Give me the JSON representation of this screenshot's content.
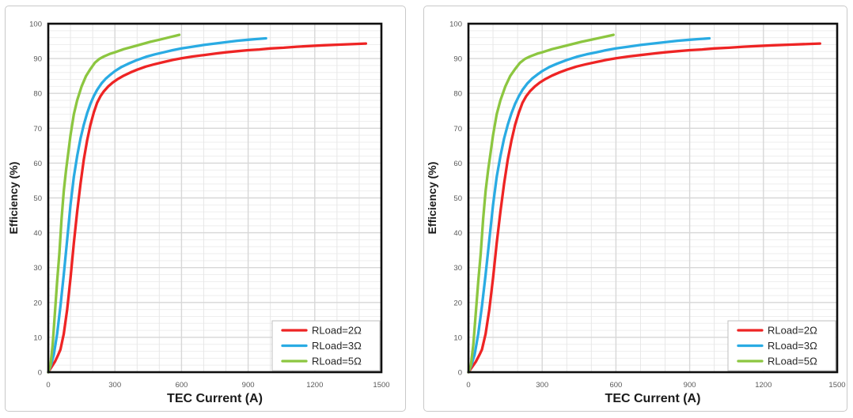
{
  "colors": {
    "rload2": "#ee2424",
    "rload3": "#2aabe3",
    "rload5": "#8cc640",
    "grid_minor_h": "#eeeeee",
    "grid_minor_v": "#e7e7e7",
    "grid_major": "#d7d7d7",
    "plot_border": "#0f0f0f",
    "tick_label": "#595959",
    "axis_title": "#1a1a1a",
    "legend_border": "#bfbfbf",
    "legend_text": "#262626",
    "panel_border": "#c9c9c9"
  },
  "chart_data": [
    {
      "type": "line",
      "title": "",
      "xlabel": "TEC Current (A)",
      "ylabel": "Efficiency (%)",
      "xlim": [
        0,
        1500
      ],
      "ylim": [
        0,
        100
      ],
      "xticks": [
        0,
        300,
        600,
        900,
        1200,
        1500
      ],
      "yticks": [
        0,
        10,
        20,
        30,
        40,
        50,
        60,
        70,
        80,
        90,
        100
      ],
      "x_minor_step": 100,
      "y_minor_step": 2,
      "grid": "on",
      "legend_position": "bottom-right",
      "series": [
        {
          "name": "RLoad=2Ω",
          "color": "#ee2424",
          "points": [
            [
              0,
              0
            ],
            [
              15,
              1.5
            ],
            [
              30,
              3
            ],
            [
              45,
              5
            ],
            [
              55,
              6.5
            ],
            [
              70,
              11
            ],
            [
              85,
              18
            ],
            [
              100,
              27
            ],
            [
              115,
              37
            ],
            [
              130,
              46
            ],
            [
              145,
              54
            ],
            [
              160,
              61
            ],
            [
              175,
              66.5
            ],
            [
              190,
              71
            ],
            [
              205,
              74.5
            ],
            [
              220,
              77.3
            ],
            [
              235,
              79.2
            ],
            [
              250,
              80.6
            ],
            [
              270,
              82
            ],
            [
              290,
              83.1
            ],
            [
              310,
              84
            ],
            [
              340,
              85.1
            ],
            [
              370,
              86
            ],
            [
              400,
              86.8
            ],
            [
              440,
              87.7
            ],
            [
              480,
              88.4
            ],
            [
              520,
              89
            ],
            [
              560,
              89.6
            ],
            [
              600,
              90.1
            ],
            [
              650,
              90.6
            ],
            [
              700,
              91
            ],
            [
              750,
              91.4
            ],
            [
              800,
              91.8
            ],
            [
              850,
              92.1
            ],
            [
              900,
              92.4
            ],
            [
              950,
              92.6
            ],
            [
              1000,
              92.9
            ],
            [
              1060,
              93.1
            ],
            [
              1120,
              93.4
            ],
            [
              1180,
              93.6
            ],
            [
              1240,
              93.8
            ],
            [
              1310,
              94
            ],
            [
              1430,
              94.3
            ]
          ]
        },
        {
          "name": "RLoad=3Ω",
          "color": "#2aabe3",
          "points": [
            [
              0,
              0
            ],
            [
              12,
              2
            ],
            [
              25,
              5
            ],
            [
              40,
              11
            ],
            [
              55,
              19
            ],
            [
              70,
              28
            ],
            [
              85,
              38
            ],
            [
              100,
              48
            ],
            [
              115,
              56
            ],
            [
              130,
              62
            ],
            [
              145,
              67
            ],
            [
              160,
              71
            ],
            [
              175,
              74.3
            ],
            [
              190,
              77
            ],
            [
              205,
              79.2
            ],
            [
              220,
              81
            ],
            [
              240,
              82.9
            ],
            [
              260,
              84.3
            ],
            [
              280,
              85.4
            ],
            [
              300,
              86.4
            ],
            [
              330,
              87.6
            ],
            [
              360,
              88.5
            ],
            [
              400,
              89.6
            ],
            [
              440,
              90.5
            ],
            [
              480,
              91.2
            ],
            [
              520,
              91.8
            ],
            [
              560,
              92.4
            ],
            [
              600,
              92.9
            ],
            [
              650,
              93.4
            ],
            [
              700,
              93.9
            ],
            [
              750,
              94.3
            ],
            [
              800,
              94.7
            ],
            [
              850,
              95.1
            ],
            [
              900,
              95.4
            ],
            [
              940,
              95.6
            ],
            [
              980,
              95.8
            ]
          ]
        },
        {
          "name": "RLoad=5Ω",
          "color": "#8cc640",
          "points": [
            [
              0,
              0
            ],
            [
              10,
              2
            ],
            [
              20,
              8
            ],
            [
              30,
              17
            ],
            [
              40,
              26
            ],
            [
              50,
              34
            ],
            [
              60,
              44
            ],
            [
              70,
              52
            ],
            [
              80,
              58
            ],
            [
              90,
              63
            ],
            [
              100,
              68
            ],
            [
              115,
              74
            ],
            [
              130,
              78
            ],
            [
              150,
              82
            ],
            [
              170,
              85
            ],
            [
              190,
              87
            ],
            [
              210,
              88.8
            ],
            [
              230,
              89.9
            ],
            [
              250,
              90.6
            ],
            [
              280,
              91.4
            ],
            [
              300,
              91.8
            ],
            [
              340,
              92.7
            ],
            [
              380,
              93.4
            ],
            [
              420,
              94.1
            ],
            [
              460,
              94.8
            ],
            [
              500,
              95.4
            ],
            [
              545,
              96.1
            ],
            [
              590,
              96.8
            ]
          ]
        }
      ]
    },
    {
      "type": "line",
      "title": "",
      "xlabel": "TEC Current (A)",
      "ylabel": "Efficiency (%)",
      "xlim": [
        0,
        1500
      ],
      "ylim": [
        0,
        100
      ],
      "xticks": [
        0,
        300,
        600,
        900,
        1200,
        1500
      ],
      "yticks": [
        0,
        10,
        20,
        30,
        40,
        50,
        60,
        70,
        80,
        90,
        100
      ],
      "x_minor_step": 100,
      "y_minor_step": 2,
      "grid": "on",
      "legend_position": "bottom-right",
      "series": [
        {
          "name": "RLoad=2Ω",
          "color": "#ee2424",
          "points": [
            [
              0,
              0
            ],
            [
              15,
              1.5
            ],
            [
              30,
              3
            ],
            [
              45,
              5
            ],
            [
              55,
              6.5
            ],
            [
              70,
              11
            ],
            [
              85,
              18
            ],
            [
              100,
              27
            ],
            [
              115,
              37
            ],
            [
              130,
              46
            ],
            [
              145,
              54
            ],
            [
              160,
              61
            ],
            [
              175,
              66.5
            ],
            [
              190,
              71
            ],
            [
              205,
              74.5
            ],
            [
              220,
              77.3
            ],
            [
              235,
              79.2
            ],
            [
              250,
              80.6
            ],
            [
              270,
              82
            ],
            [
              290,
              83.1
            ],
            [
              310,
              84
            ],
            [
              340,
              85.1
            ],
            [
              370,
              86
            ],
            [
              400,
              86.8
            ],
            [
              440,
              87.7
            ],
            [
              480,
              88.4
            ],
            [
              520,
              89
            ],
            [
              560,
              89.6
            ],
            [
              600,
              90.1
            ],
            [
              650,
              90.6
            ],
            [
              700,
              91
            ],
            [
              750,
              91.4
            ],
            [
              800,
              91.8
            ],
            [
              850,
              92.1
            ],
            [
              900,
              92.4
            ],
            [
              950,
              92.6
            ],
            [
              1000,
              92.9
            ],
            [
              1060,
              93.1
            ],
            [
              1120,
              93.4
            ],
            [
              1180,
              93.6
            ],
            [
              1240,
              93.8
            ],
            [
              1310,
              94
            ],
            [
              1430,
              94.3
            ]
          ]
        },
        {
          "name": "RLoad=3Ω",
          "color": "#2aabe3",
          "points": [
            [
              0,
              0
            ],
            [
              12,
              2
            ],
            [
              25,
              5
            ],
            [
              40,
              11
            ],
            [
              55,
              19
            ],
            [
              70,
              28
            ],
            [
              85,
              38
            ],
            [
              100,
              48
            ],
            [
              115,
              56
            ],
            [
              130,
              62
            ],
            [
              145,
              67
            ],
            [
              160,
              71
            ],
            [
              175,
              74.3
            ],
            [
              190,
              77
            ],
            [
              205,
              79.2
            ],
            [
              220,
              81
            ],
            [
              240,
              82.9
            ],
            [
              260,
              84.3
            ],
            [
              280,
              85.4
            ],
            [
              300,
              86.4
            ],
            [
              330,
              87.6
            ],
            [
              360,
              88.5
            ],
            [
              400,
              89.6
            ],
            [
              440,
              90.5
            ],
            [
              480,
              91.2
            ],
            [
              520,
              91.8
            ],
            [
              560,
              92.4
            ],
            [
              600,
              92.9
            ],
            [
              650,
              93.4
            ],
            [
              700,
              93.9
            ],
            [
              750,
              94.3
            ],
            [
              800,
              94.7
            ],
            [
              850,
              95.1
            ],
            [
              900,
              95.4
            ],
            [
              940,
              95.6
            ],
            [
              980,
              95.8
            ]
          ]
        },
        {
          "name": "RLoad=5Ω",
          "color": "#8cc640",
          "points": [
            [
              0,
              0
            ],
            [
              10,
              2
            ],
            [
              20,
              8
            ],
            [
              30,
              17
            ],
            [
              40,
              26
            ],
            [
              50,
              34
            ],
            [
              60,
              44
            ],
            [
              70,
              52
            ],
            [
              80,
              58
            ],
            [
              90,
              63
            ],
            [
              100,
              68
            ],
            [
              115,
              74
            ],
            [
              130,
              78
            ],
            [
              150,
              82
            ],
            [
              170,
              85
            ],
            [
              190,
              87
            ],
            [
              210,
              88.8
            ],
            [
              230,
              89.9
            ],
            [
              250,
              90.6
            ],
            [
              280,
              91.4
            ],
            [
              300,
              91.8
            ],
            [
              340,
              92.7
            ],
            [
              380,
              93.4
            ],
            [
              420,
              94.1
            ],
            [
              460,
              94.8
            ],
            [
              500,
              95.4
            ],
            [
              545,
              96.1
            ],
            [
              590,
              96.8
            ]
          ]
        }
      ]
    }
  ]
}
